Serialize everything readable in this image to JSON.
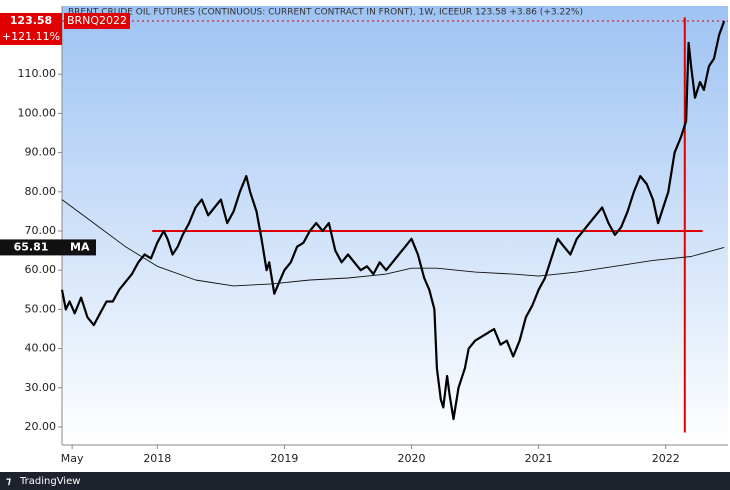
{
  "chart_data": {
    "type": "line",
    "title": "BRENT CRUDE OIL FUTURES (CONTINUOUS: CURRENT CONTRACT IN FRONT), 1W, ICEEUR  123.58  +3.86 (+3.22%)",
    "symbol": "BRNQ2022",
    "change_label": "+121.11%",
    "branding": "TradingView",
    "xlim": [
      2017.25,
      2022.49
    ],
    "ylim": [
      15.4,
      127.4
    ],
    "xticks": [
      {
        "value": 2017.33,
        "label": "May"
      },
      2018,
      2019,
      2020,
      2021,
      2022
    ],
    "yticks": [
      {
        "value": 20,
        "label": "20.00"
      },
      {
        "value": 30,
        "label": "30.00"
      },
      {
        "value": 40,
        "label": "40.00"
      },
      {
        "value": 50,
        "label": "50.00"
      },
      {
        "value": 60,
        "label": "60.00"
      },
      {
        "value": 70,
        "label": "70.00"
      },
      {
        "value": 80,
        "label": "80.00"
      },
      {
        "value": 90,
        "label": "90.00"
      },
      {
        "value": 100,
        "label": "100.00"
      },
      {
        "value": 110,
        "label": "110.00"
      }
    ],
    "series": [
      {
        "name": "BRNQ2022",
        "color": "#000000",
        "width": 2.2,
        "x": [
          2017.25,
          2017.28,
          2017.31,
          2017.35,
          2017.4,
          2017.45,
          2017.5,
          2017.55,
          2017.6,
          2017.65,
          2017.7,
          2017.75,
          2017.8,
          2017.85,
          2017.9,
          2017.95,
          2018.0,
          2018.05,
          2018.08,
          2018.12,
          2018.16,
          2018.2,
          2018.25,
          2018.3,
          2018.35,
          2018.4,
          2018.45,
          2018.5,
          2018.55,
          2018.6,
          2018.65,
          2018.7,
          2018.73,
          2018.78,
          2018.82,
          2018.86,
          2018.88,
          2018.92,
          2018.96,
          2019.0,
          2019.05,
          2019.1,
          2019.15,
          2019.2,
          2019.25,
          2019.3,
          2019.35,
          2019.4,
          2019.45,
          2019.5,
          2019.55,
          2019.6,
          2019.65,
          2019.7,
          2019.75,
          2019.8,
          2019.85,
          2019.9,
          2019.95,
          2020.0,
          2020.05,
          2020.1,
          2020.14,
          2020.18,
          2020.2,
          2020.23,
          2020.25,
          2020.28,
          2020.3,
          2020.33,
          2020.37,
          2020.42,
          2020.45,
          2020.5,
          2020.55,
          2020.6,
          2020.65,
          2020.7,
          2020.75,
          2020.8,
          2020.85,
          2020.9,
          2020.95,
          2021.0,
          2021.05,
          2021.1,
          2021.15,
          2021.2,
          2021.25,
          2021.3,
          2021.35,
          2021.4,
          2021.45,
          2021.5,
          2021.55,
          2021.6,
          2021.65,
          2021.7,
          2021.75,
          2021.8,
          2021.85,
          2021.9,
          2021.94,
          2021.98,
          2022.02,
          2022.07,
          2022.12,
          2022.16,
          2022.18,
          2022.2,
          2022.23,
          2022.27,
          2022.3,
          2022.34,
          2022.38,
          2022.42,
          2022.46
        ],
        "values": [
          55,
          50,
          52,
          49,
          53,
          48,
          46,
          49,
          52,
          52,
          55,
          57,
          59,
          62,
          64,
          63,
          67,
          70,
          68,
          64,
          66,
          69,
          72,
          76,
          78,
          74,
          76,
          78,
          72,
          75,
          80,
          84,
          80,
          75,
          68,
          60,
          62,
          54,
          57,
          60,
          62,
          66,
          67,
          70,
          72,
          70,
          72,
          65,
          62,
          64,
          62,
          60,
          61,
          59,
          62,
          60,
          62,
          64,
          66,
          68,
          64,
          58,
          55,
          50,
          35,
          27,
          25,
          33,
          28,
          22,
          30,
          35,
          40,
          42,
          43,
          44,
          45,
          41,
          42,
          38,
          42,
          48,
          51,
          55,
          58,
          63,
          68,
          66,
          64,
          68,
          70,
          72,
          74,
          76,
          72,
          69,
          71,
          75,
          80,
          84,
          82,
          78,
          72,
          76,
          80,
          90,
          94,
          98,
          118,
          112,
          104,
          108,
          106,
          112,
          114,
          120,
          123.58
        ]
      },
      {
        "name": "MA",
        "color": "#111111",
        "width": 0.9,
        "x": [
          2017.25,
          2017.5,
          2017.75,
          2018.0,
          2018.3,
          2018.6,
          2018.9,
          2019.2,
          2019.5,
          2019.8,
          2020.0,
          2020.2,
          2020.5,
          2020.8,
          2021.0,
          2021.3,
          2021.6,
          2021.9,
          2022.2,
          2022.46
        ],
        "values": [
          78,
          72,
          66,
          61,
          57.5,
          56,
          56.5,
          57.5,
          58,
          59,
          60.5,
          60.5,
          59.5,
          59,
          58.5,
          59.5,
          61,
          62.5,
          63.5,
          65.81
        ]
      }
    ],
    "price_line": {
      "value": 123.58,
      "label": "123.58",
      "color": "#e00000"
    },
    "ma_label": {
      "value": 65.81,
      "label": "65.81"
    },
    "hline": {
      "value": 70,
      "x": [
        2017.96,
        2022.29
      ],
      "color": "#e00000"
    },
    "vline": {
      "x": 2022.15,
      "y": [
        18.6,
        124.5
      ],
      "color": "#e00000"
    }
  }
}
